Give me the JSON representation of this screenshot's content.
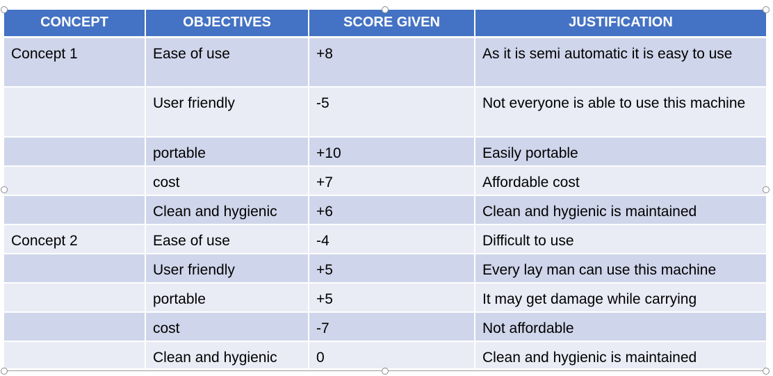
{
  "table": {
    "headers": [
      "CONCEPT",
      "OBJECTIVES",
      "SCORE GIVEN",
      "JUSTIFICATION"
    ],
    "rows": [
      {
        "concept": "Concept 1",
        "objective": "Ease of use",
        "score": "+8",
        "justification": "As it is semi automatic it is easy to use"
      },
      {
        "concept": "",
        "objective": "User friendly",
        "score": "-5",
        "justification": "Not everyone is able to use this machine"
      },
      {
        "concept": "",
        "objective": "portable",
        "score": "+10",
        "justification": "Easily portable"
      },
      {
        "concept": "",
        "objective": "cost",
        "score": "+7",
        "justification": "Affordable cost"
      },
      {
        "concept": "",
        "objective": "Clean and hygienic",
        "score": "+6",
        "justification": "Clean and hygienic is maintained"
      },
      {
        "concept": "Concept 2",
        "objective": "Ease of use",
        "score": "-4",
        "justification": "Difficult to use"
      },
      {
        "concept": "",
        "objective": "User friendly",
        "score": "+5",
        "justification": "Every lay man can use this machine"
      },
      {
        "concept": "",
        "objective": "portable",
        "score": "+5",
        "justification": "It may get damage while carrying"
      },
      {
        "concept": "",
        "objective": "cost",
        "score": "-7",
        "justification": "Not affordable"
      },
      {
        "concept": "",
        "objective": "Clean and hygienic",
        "score": "0",
        "justification": "Clean and hygienic  is maintained"
      }
    ]
  },
  "colors": {
    "header_bg": "#4472c4",
    "row_odd": "#cfd5ea",
    "row_even": "#e9ebf5"
  }
}
